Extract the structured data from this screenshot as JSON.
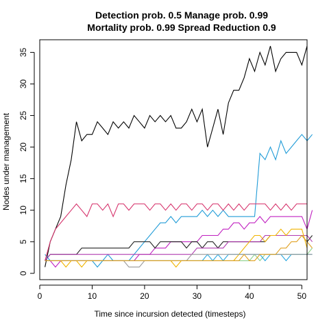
{
  "chart_data": {
    "type": "line",
    "title": "Detection prob. 0.5 Manage prob. 0.99",
    "subtitle": "Mortality prob. 0.99 Spread Reduction 0.9",
    "xlabel": "Time since incursion detected (timesteps)",
    "ylabel": "Nodes under management",
    "xlim": [
      0,
      51
    ],
    "ylim": [
      -1,
      37
    ],
    "x_ticks": [
      0,
      10,
      20,
      30,
      40,
      50
    ],
    "y_ticks": [
      0,
      5,
      10,
      15,
      20,
      25,
      30,
      35
    ],
    "grid": false,
    "legend": "none",
    "series": [
      {
        "color": "#000000",
        "values": [
          1,
          5,
          7,
          9,
          14,
          18,
          24,
          21,
          22,
          22,
          24,
          23,
          22,
          24,
          23,
          24,
          23,
          25,
          24,
          23,
          25,
          24,
          25,
          24,
          25,
          23,
          23,
          24,
          26,
          24,
          26,
          20,
          23,
          26,
          22,
          27,
          29,
          29,
          31,
          34,
          32,
          35,
          33,
          36,
          32,
          34,
          35,
          35,
          35,
          33,
          36
        ]
      },
      {
        "color": "#1f9bd7",
        "values": [
          3,
          2,
          2,
          2,
          2,
          2,
          2,
          2,
          2,
          2,
          1,
          2,
          3,
          2,
          2,
          2,
          2,
          3,
          4,
          5,
          6,
          7,
          8,
          8,
          9,
          8,
          9,
          9,
          9,
          9,
          10,
          9,
          10,
          9,
          10,
          9,
          9,
          9,
          9,
          9,
          9,
          19,
          18,
          20,
          18,
          21,
          19,
          20,
          21,
          22,
          21,
          22
        ]
      },
      {
        "color": "#d6336c",
        "values": [
          2,
          5,
          7,
          8,
          9,
          10,
          11,
          10,
          9,
          11,
          11,
          10,
          11,
          9,
          11,
          11,
          10,
          11,
          11,
          11,
          10,
          11,
          11,
          10,
          11,
          10,
          11,
          11,
          10,
          11,
          11,
          10,
          11,
          11,
          10,
          11,
          10,
          11,
          10,
          11,
          11,
          11,
          11,
          10,
          11,
          10,
          11,
          10,
          11,
          11,
          11
        ]
      },
      {
        "color": "#c020c0",
        "values": [
          2,
          2,
          1,
          2,
          2,
          2,
          2,
          2,
          2,
          2,
          2,
          2,
          2,
          2,
          2,
          2,
          2,
          2,
          3,
          3,
          3,
          4,
          4,
          4,
          5,
          5,
          5,
          5,
          5,
          5,
          6,
          6,
          6,
          6,
          7,
          7,
          8,
          8,
          7,
          8,
          8,
          9,
          8,
          9,
          9,
          9,
          9,
          9,
          9,
          9,
          7,
          10
        ]
      },
      {
        "color": "#222222",
        "values": [
          2,
          3,
          3,
          3,
          3,
          3,
          3,
          4,
          4,
          4,
          4,
          4,
          4,
          4,
          4,
          4,
          4,
          5,
          5,
          5,
          5,
          4,
          5,
          5,
          5,
          5,
          5,
          4,
          5,
          5,
          4,
          5,
          5,
          4,
          5,
          5,
          5,
          5,
          5,
          5,
          5,
          5,
          5,
          6,
          6,
          6,
          6,
          6,
          6,
          6,
          5,
          6
        ]
      },
      {
        "color": "#b03ab0",
        "values": [
          2,
          3,
          3,
          3,
          3,
          3,
          3,
          3,
          3,
          3,
          3,
          3,
          3,
          3,
          3,
          3,
          3,
          3,
          3,
          3,
          3,
          3,
          3,
          3,
          3,
          3,
          3,
          3,
          3,
          4,
          4,
          4,
          4,
          4,
          4,
          5,
          5,
          5,
          5,
          5,
          5,
          5,
          6,
          6,
          6,
          6,
          6,
          6,
          6,
          6,
          6,
          5
        ]
      },
      {
        "color": "#f0b400",
        "values": [
          2,
          2,
          2,
          2,
          1,
          2,
          2,
          1,
          2,
          2,
          2,
          2,
          2,
          2,
          2,
          2,
          2,
          2,
          2,
          2,
          2,
          2,
          2,
          2,
          2,
          1,
          2,
          2,
          2,
          2,
          2,
          2,
          2,
          2,
          2,
          2,
          2,
          3,
          4,
          5,
          6,
          6,
          5,
          6,
          6,
          7,
          6,
          7,
          7,
          7,
          4
        ]
      },
      {
        "color": "#8dd08d",
        "values": [
          2,
          2,
          2,
          2,
          2,
          2,
          2,
          2,
          2,
          2,
          2,
          2,
          2,
          2,
          2,
          2,
          2,
          2,
          2,
          2,
          2,
          2,
          2,
          2,
          2,
          2,
          2,
          2,
          2,
          2,
          2,
          2,
          2,
          2,
          2,
          2,
          2,
          2,
          2,
          2,
          3,
          2,
          3,
          3,
          3,
          3,
          3,
          3,
          3,
          3,
          3,
          4
        ]
      },
      {
        "color": "#29a8e0",
        "values": [
          2,
          2,
          2,
          2,
          2,
          2,
          2,
          2,
          2,
          2,
          2,
          2,
          2,
          2,
          2,
          2,
          2,
          2,
          2,
          2,
          2,
          2,
          2,
          2,
          2,
          2,
          2,
          2,
          2,
          2,
          2,
          3,
          2,
          3,
          2,
          3,
          3,
          3,
          3,
          3,
          3,
          3,
          2,
          3,
          3,
          3,
          2,
          3,
          3,
          3,
          3,
          3
        ]
      },
      {
        "color": "#999999",
        "values": [
          2,
          2,
          2,
          2,
          2,
          2,
          2,
          2,
          2,
          2,
          2,
          2,
          2,
          2,
          2,
          2,
          1,
          1,
          1,
          2,
          2,
          2,
          2,
          2,
          2,
          2,
          2,
          2,
          3,
          3,
          3,
          3,
          3,
          3,
          3,
          3,
          3,
          3,
          3,
          3,
          3,
          3,
          3,
          3,
          3,
          3,
          3,
          3,
          3,
          3,
          3,
          3
        ]
      },
      {
        "color": "#e0a020",
        "values": [
          2,
          2,
          2,
          2,
          2,
          2,
          2,
          2,
          2,
          2,
          2,
          2,
          2,
          2,
          2,
          2,
          2,
          2,
          2,
          2,
          2,
          2,
          2,
          2,
          2,
          2,
          2,
          2,
          2,
          2,
          2,
          2,
          2,
          2,
          2,
          2,
          2,
          2,
          3,
          2,
          2,
          3,
          3,
          3,
          3,
          4,
          4,
          5,
          5,
          6,
          5,
          4
        ]
      }
    ]
  }
}
